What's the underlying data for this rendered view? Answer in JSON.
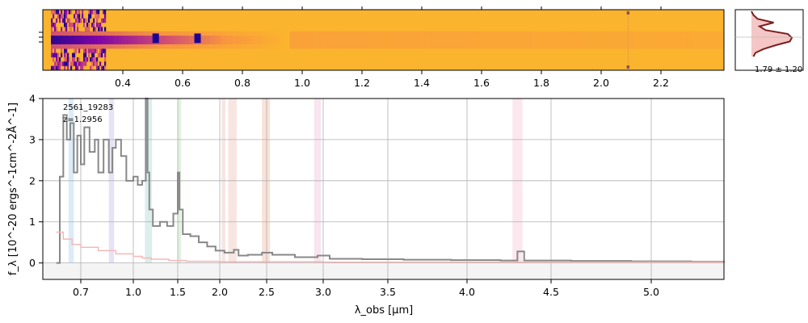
{
  "chart_data": [
    {
      "id": "spectrum_2d",
      "type": "heatmap",
      "colormap": "plasma",
      "top_ticks": [
        "0.4",
        "0.6",
        "0.8",
        "1.0",
        "1.2",
        "1.4",
        "1.6",
        "1.8",
        "2.0",
        "2.2"
      ],
      "tick_x_positions_data": [
        0.4,
        0.6,
        0.8,
        1.0,
        1.2,
        1.4,
        1.6,
        1.8,
        2.0,
        2.2
      ],
      "trace_features": [
        {
          "name": "line-blob-1",
          "at": 0.51
        },
        {
          "name": "line-blob-2",
          "at": 0.65
        },
        {
          "name": "bad-column",
          "at": 2.09
        }
      ]
    },
    {
      "id": "profile",
      "type": "line",
      "annotation": "1.79 ± 1.20",
      "profile": [
        0.0,
        0.05,
        0.15,
        0.55,
        0.2,
        0.35,
        0.9,
        1.0,
        0.95,
        0.6,
        0.3,
        0.1,
        0.05
      ]
    },
    {
      "id": "spectrum_1d",
      "type": "line",
      "label_id": "2561_19283",
      "label_z": "z=1.2956",
      "ylabel": "f_λ [10^-20 ergs^-1cm^-2Å^-1]",
      "xlabel": "λ_obs [μm]",
      "ylim": [
        -0.4,
        4.0
      ],
      "yticks": [
        "0",
        "1",
        "2",
        "3",
        "4"
      ],
      "xticks": [
        {
          "label": "0.7",
          "at": 0.7
        },
        {
          "label": "1.0",
          "at": 1.0
        },
        {
          "label": "1.5",
          "at": 1.5
        },
        {
          "label": "2.0",
          "at": 2.0
        },
        {
          "label": "2.5",
          "at": 2.5
        },
        {
          "label": "3.0",
          "at": 3.0
        },
        {
          "label": "3.5",
          "at": 3.5
        },
        {
          "label": "4.0",
          "at": 4.0
        },
        {
          "label": "4.5",
          "at": 4.5
        },
        {
          "label": "5.0",
          "at": 5.0
        }
      ],
      "grid": true,
      "bands": [
        {
          "from": 0.63,
          "to": 0.66,
          "color": "#cfe6f5"
        },
        {
          "from": 0.86,
          "to": 0.89,
          "color": "#dcdaf5"
        },
        {
          "from": 1.13,
          "to": 1.21,
          "color": "#cfe9e4"
        },
        {
          "from": 1.5,
          "to": 1.54,
          "color": "#d8ecd3"
        },
        {
          "from": 2.02,
          "to": 2.06,
          "color": "#f5dcd8"
        },
        {
          "from": 2.09,
          "to": 2.18,
          "color": "#f5dcd8"
        },
        {
          "from": 2.45,
          "to": 2.53,
          "color": "#f8d8cc"
        },
        {
          "from": 2.92,
          "to": 2.98,
          "color": "#f5dcea"
        },
        {
          "from": 4.27,
          "to": 4.33,
          "color": "#f8e0e8"
        }
      ],
      "series": [
        {
          "color": "#888888",
          "points": [
            [
              0.56,
              0.0
            ],
            [
              0.58,
              2.1
            ],
            [
              0.6,
              3.6
            ],
            [
              0.62,
              3.0
            ],
            [
              0.64,
              3.4
            ],
            [
              0.66,
              2.2
            ],
            [
              0.68,
              3.1
            ],
            [
              0.7,
              2.4
            ],
            [
              0.72,
              3.3
            ],
            [
              0.75,
              2.7
            ],
            [
              0.78,
              3.0
            ],
            [
              0.8,
              2.2
            ],
            [
              0.83,
              3.0
            ],
            [
              0.86,
              2.2
            ],
            [
              0.88,
              2.8
            ],
            [
              0.9,
              3.0
            ],
            [
              0.93,
              2.6
            ],
            [
              0.96,
              2.0
            ],
            [
              1.0,
              2.1
            ],
            [
              1.05,
              1.9
            ],
            [
              1.1,
              2.0
            ],
            [
              1.14,
              4.0
            ],
            [
              1.16,
              2.2
            ],
            [
              1.18,
              1.3
            ],
            [
              1.22,
              0.9
            ],
            [
              1.3,
              1.0
            ],
            [
              1.38,
              0.9
            ],
            [
              1.45,
              1.2
            ],
            [
              1.5,
              2.2
            ],
            [
              1.52,
              1.3
            ],
            [
              1.56,
              0.7
            ],
            [
              1.65,
              0.65
            ],
            [
              1.75,
              0.5
            ],
            [
              1.85,
              0.4
            ],
            [
              1.95,
              0.3
            ],
            [
              2.05,
              0.25
            ],
            [
              2.15,
              0.32
            ],
            [
              2.2,
              0.18
            ],
            [
              2.3,
              0.2
            ],
            [
              2.45,
              0.25
            ],
            [
              2.55,
              0.2
            ],
            [
              2.75,
              0.14
            ],
            [
              2.95,
              0.18
            ],
            [
              3.05,
              0.1
            ],
            [
              3.3,
              0.09
            ],
            [
              3.6,
              0.08
            ],
            [
              3.9,
              0.07
            ],
            [
              4.2,
              0.06
            ],
            [
              4.3,
              0.28
            ],
            [
              4.34,
              0.06
            ],
            [
              4.6,
              0.05
            ],
            [
              4.9,
              0.04
            ],
            [
              5.2,
              0.03
            ],
            [
              5.4,
              0.02
            ]
          ]
        },
        {
          "color": "#f5b8b8",
          "points": [
            [
              0.56,
              0.75
            ],
            [
              0.6,
              0.58
            ],
            [
              0.65,
              0.45
            ],
            [
              0.7,
              0.38
            ],
            [
              0.8,
              0.3
            ],
            [
              0.9,
              0.22
            ],
            [
              1.0,
              0.16
            ],
            [
              1.1,
              0.12
            ],
            [
              1.2,
              0.09
            ],
            [
              1.4,
              0.06
            ],
            [
              1.6,
              0.04
            ],
            [
              2.0,
              0.03
            ],
            [
              3.0,
              0.02
            ],
            [
              4.0,
              0.02
            ],
            [
              5.4,
              0.02
            ]
          ]
        }
      ]
    }
  ]
}
